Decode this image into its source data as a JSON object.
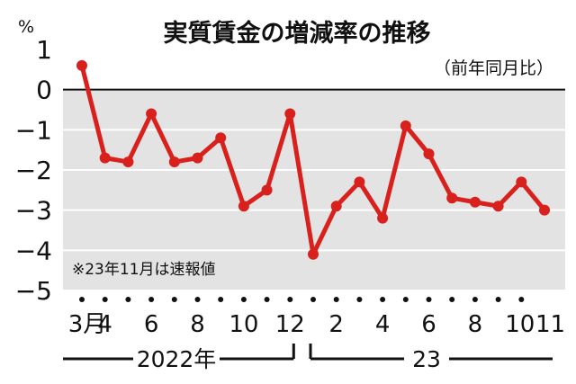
{
  "chart_data": {
    "type": "line",
    "title": "実質賃金の増減率の推移",
    "subtitle": "（前年同月比）",
    "ylabel": "%",
    "note": "※23年11月は速報値",
    "ylim": [
      -5,
      1
    ],
    "yticks": [
      {
        "value": 1,
        "label": "1"
      },
      {
        "value": 0,
        "label": "0"
      },
      {
        "value": -1,
        "label": "−1"
      },
      {
        "value": -2,
        "label": "−2"
      },
      {
        "value": -3,
        "label": "−3"
      },
      {
        "value": -4,
        "label": "−4"
      },
      {
        "value": -5,
        "label": "−5"
      }
    ],
    "xticks": [
      {
        "index": 0,
        "label": "3月"
      },
      {
        "index": 1,
        "label": "4"
      },
      {
        "index": 3,
        "label": "6"
      },
      {
        "index": 5,
        "label": "8"
      },
      {
        "index": 7,
        "label": "10"
      },
      {
        "index": 9,
        "label": "12"
      },
      {
        "index": 11,
        "label": "2"
      },
      {
        "index": 13,
        "label": "4"
      },
      {
        "index": 15,
        "label": "6"
      },
      {
        "index": 17,
        "label": "8"
      },
      {
        "index": 19,
        "label": "10"
      },
      {
        "index": 20,
        "label": "11"
      }
    ],
    "year_groups": [
      {
        "label": "2022年",
        "from": 0,
        "to": 9
      },
      {
        "label": "23",
        "from": 10,
        "to": 20
      }
    ],
    "categories": [
      "2022-03",
      "2022-04",
      "2022-05",
      "2022-06",
      "2022-07",
      "2022-08",
      "2022-09",
      "2022-10",
      "2022-11",
      "2022-12",
      "2023-01",
      "2023-02",
      "2023-03",
      "2023-04",
      "2023-05",
      "2023-06",
      "2023-07",
      "2023-08",
      "2023-09",
      "2023-10",
      "2023-11"
    ],
    "values": [
      0.6,
      -1.7,
      -1.8,
      -0.6,
      -1.8,
      -1.7,
      -1.2,
      -2.9,
      -2.5,
      -0.6,
      -4.1,
      -2.9,
      -2.3,
      -3.2,
      -0.9,
      -1.6,
      -2.7,
      -2.8,
      -2.9,
      -2.3,
      -3.0
    ],
    "colors": {
      "line": "#d8201c",
      "band": "#e3e3e3",
      "text": "#111111"
    }
  }
}
